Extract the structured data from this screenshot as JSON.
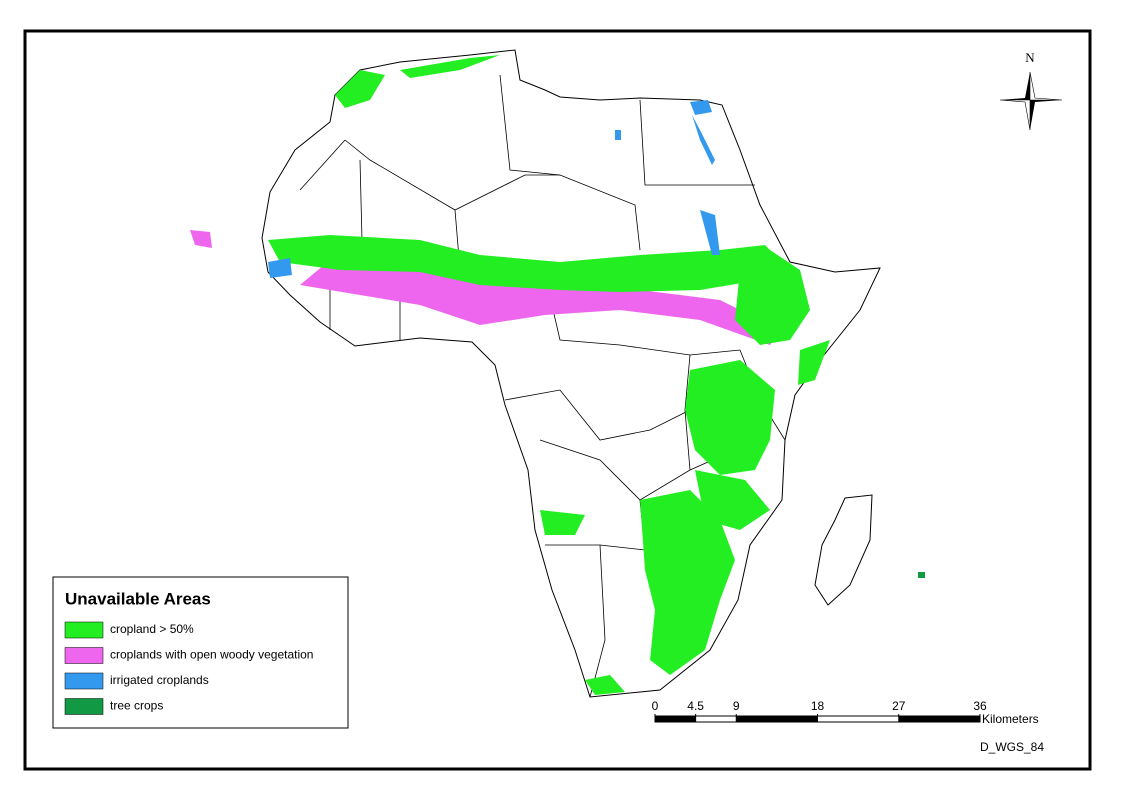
{
  "north_arrow": {
    "label": "N"
  },
  "legend": {
    "title": "Unavailable Areas",
    "items": [
      {
        "label": "cropland > 50%",
        "color": "#22ee22"
      },
      {
        "label": "croplands with open woody vegetation",
        "color": "#ee66ee"
      },
      {
        "label": "irrigated croplands",
        "color": "#3399ee"
      },
      {
        "label": "tree crops",
        "color": "#119944"
      }
    ]
  },
  "scale_bar": {
    "ticks": [
      0,
      4.5,
      9,
      18,
      27,
      36
    ],
    "unit": "Kilometers"
  },
  "projection": "D_WGS_84"
}
